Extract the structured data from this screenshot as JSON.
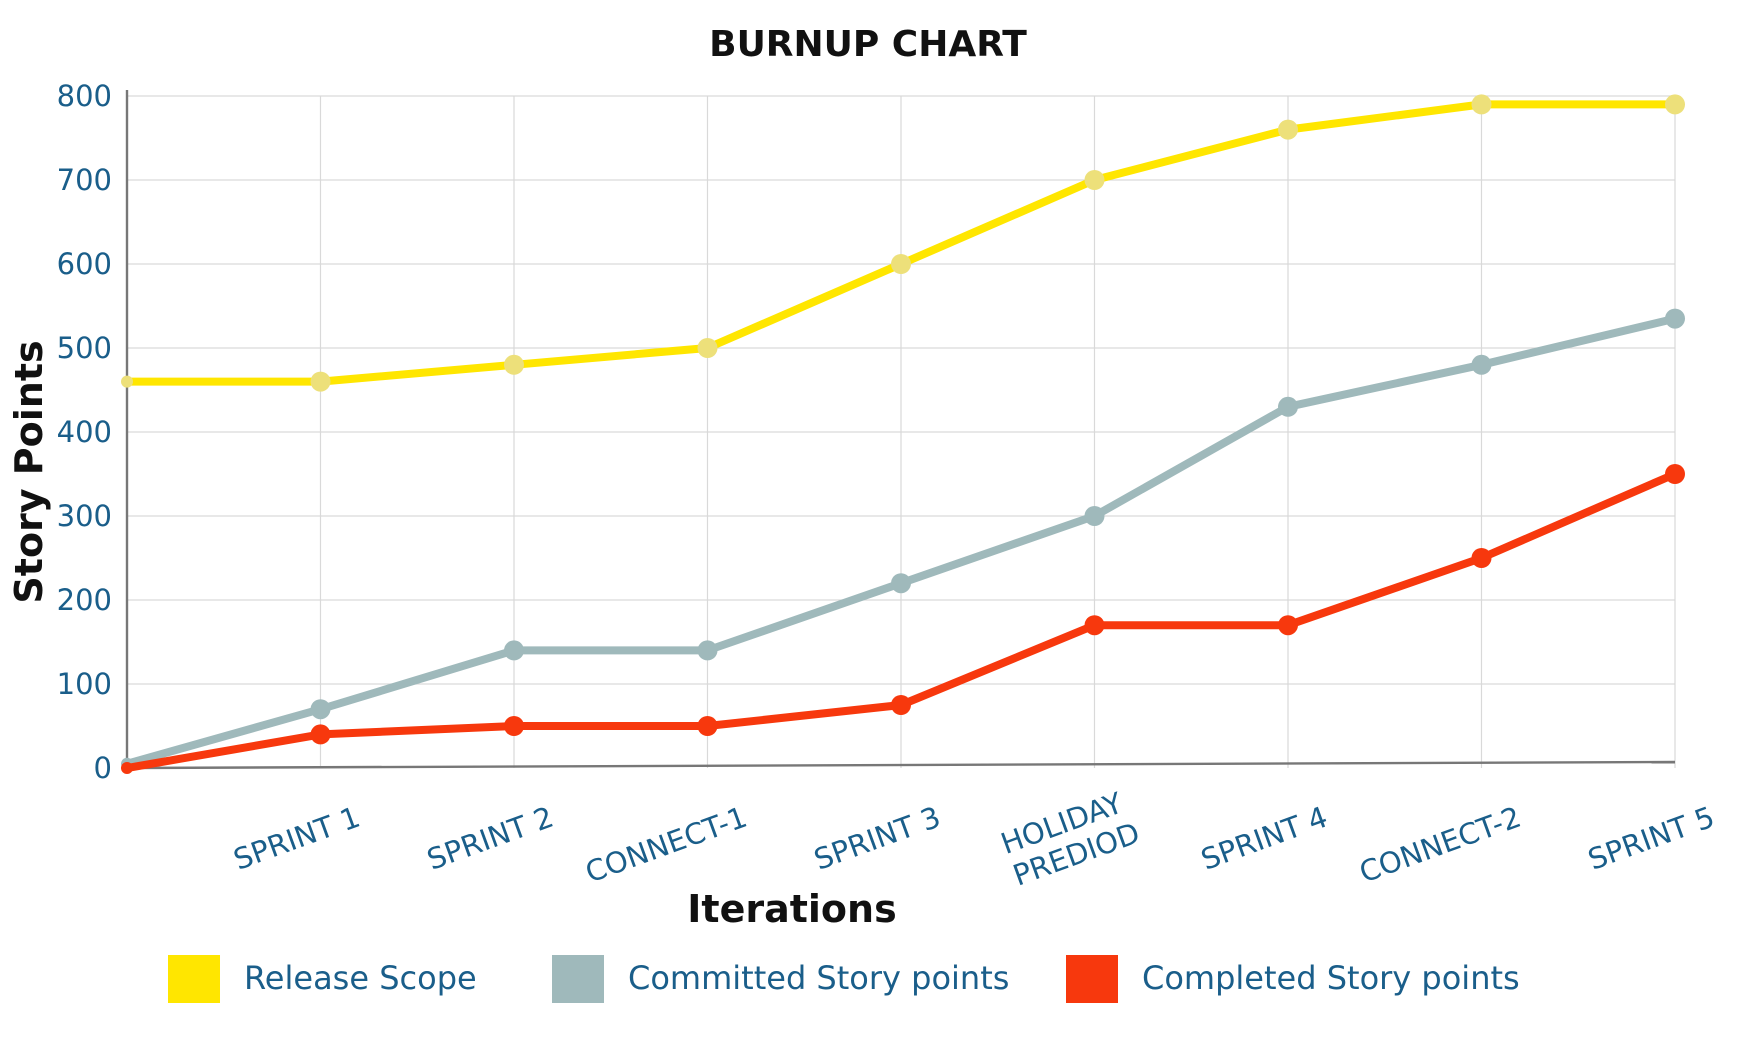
{
  "chart_data": {
    "type": "line",
    "title": "BURNUP CHART",
    "xlabel": "Iterations",
    "ylabel": "Story Points",
    "categories": [
      "",
      "SPRINT 1",
      "SPRINT 2",
      "CONNECT-1",
      "SPRINT 3",
      "HOLIDAY PREDIOD",
      "SPRINT 4",
      "CONNECT-2",
      "SPRINT 5"
    ],
    "category_lines": [
      [
        ""
      ],
      [
        "SPRINT 1"
      ],
      [
        "SPRINT 2"
      ],
      [
        "CONNECT-1"
      ],
      [
        "SPRINT 3"
      ],
      [
        "HOLIDAY",
        "PREDIOD"
      ],
      [
        "SPRINT 4"
      ],
      [
        "CONNECT-2"
      ],
      [
        "SPRINT 5"
      ]
    ],
    "yticks": [
      0,
      100,
      200,
      300,
      400,
      500,
      600,
      700,
      800
    ],
    "ylim": [
      0,
      800
    ],
    "grid": true,
    "legend_position": "bottom",
    "series": [
      {
        "name": "Release Scope",
        "color": "#ffe600",
        "marker_color": "#ede07a",
        "values": [
          460,
          460,
          480,
          500,
          600,
          700,
          760,
          790,
          790
        ]
      },
      {
        "name": "Committed Story points",
        "color": "#9fb9bb",
        "marker_color": "#9fb9bb",
        "values": [
          5,
          70,
          140,
          140,
          220,
          300,
          430,
          480,
          535
        ]
      },
      {
        "name": "Completed Story points",
        "color": "#f7380d",
        "marker_color": "#f7380d",
        "values": [
          0,
          40,
          50,
          50,
          75,
          170,
          170,
          250,
          350
        ]
      }
    ]
  }
}
